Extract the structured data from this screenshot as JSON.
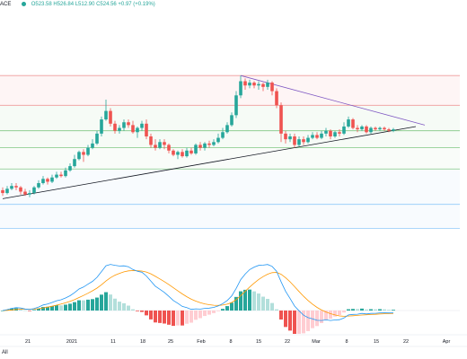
{
  "header": {
    "symbol_fragment": "ACE",
    "ohlc": "O523.58 H526.84 L512.90 C524.56 +0.97 (+0.19%)"
  },
  "range_label": "All",
  "chart_data": {
    "type": "candlestick",
    "x_ticks": [
      "21",
      "2021",
      "11",
      "18",
      "25",
      "Feb",
      "8",
      "15",
      "22",
      "Mar",
      "8",
      "15",
      "22",
      "Apr"
    ],
    "price_range": [
      0,
      100
    ],
    "candles": [
      [
        30,
        28,
        32,
        26
      ],
      [
        28,
        31,
        33,
        27
      ],
      [
        31,
        33,
        35,
        30
      ],
      [
        33,
        32,
        35,
        30
      ],
      [
        32,
        29,
        33,
        27
      ],
      [
        29,
        27,
        31,
        26
      ],
      [
        27,
        28,
        30,
        25
      ],
      [
        28,
        32,
        33,
        27
      ],
      [
        32,
        35,
        37,
        31
      ],
      [
        35,
        38,
        40,
        34
      ],
      [
        38,
        36,
        39,
        34
      ],
      [
        36,
        39,
        41,
        35
      ],
      [
        39,
        41,
        43,
        38
      ],
      [
        41,
        40,
        43,
        39
      ],
      [
        40,
        44,
        46,
        39
      ],
      [
        44,
        47,
        49,
        43
      ],
      [
        47,
        52,
        55,
        46
      ],
      [
        52,
        57,
        58,
        51
      ],
      [
        57,
        55,
        59,
        50
      ],
      [
        55,
        60,
        62,
        54
      ],
      [
        60,
        63,
        66,
        59
      ],
      [
        63,
        70,
        72,
        62
      ],
      [
        70,
        80,
        82,
        68
      ],
      [
        80,
        86,
        94,
        79
      ],
      [
        86,
        77,
        88,
        75
      ],
      [
        77,
        72,
        79,
        70
      ],
      [
        72,
        74,
        76,
        70
      ],
      [
        74,
        78,
        80,
        72
      ],
      [
        78,
        76,
        80,
        74
      ],
      [
        76,
        71,
        79,
        70
      ],
      [
        71,
        74,
        75,
        67
      ],
      [
        74,
        77,
        79,
        72
      ],
      [
        77,
        68,
        80,
        66
      ],
      [
        68,
        62,
        70,
        60
      ],
      [
        62,
        60,
        66,
        58
      ],
      [
        60,
        64,
        66,
        59
      ],
      [
        64,
        62,
        66,
        59
      ],
      [
        62,
        58,
        63,
        56
      ],
      [
        58,
        55,
        59,
        54
      ],
      [
        55,
        57,
        58,
        52
      ],
      [
        57,
        54,
        59,
        53
      ],
      [
        54,
        58,
        60,
        53
      ],
      [
        58,
        56,
        60,
        55
      ],
      [
        56,
        62,
        63,
        55
      ],
      [
        62,
        60,
        64,
        58
      ],
      [
        60,
        63,
        64,
        58
      ],
      [
        63,
        62,
        65,
        60
      ],
      [
        62,
        64,
        66,
        61
      ],
      [
        64,
        67,
        70,
        63
      ],
      [
        67,
        71,
        74,
        66
      ],
      [
        71,
        76,
        78,
        70
      ],
      [
        76,
        83,
        85,
        75
      ],
      [
        83,
        97,
        100,
        81
      ],
      [
        97,
        107,
        111,
        95
      ],
      [
        107,
        104,
        109,
        101
      ],
      [
        104,
        106,
        108,
        102
      ],
      [
        106,
        104,
        107,
        102
      ],
      [
        104,
        105,
        107,
        101
      ],
      [
        105,
        103,
        106,
        100
      ],
      [
        103,
        106,
        108,
        101
      ],
      [
        106,
        100,
        107,
        97
      ],
      [
        100,
        90,
        102,
        88
      ],
      [
        90,
        70,
        92,
        64
      ],
      [
        70,
        66,
        72,
        63
      ],
      [
        66,
        68,
        70,
        64
      ],
      [
        68,
        62,
        70,
        60
      ],
      [
        62,
        66,
        68,
        61
      ],
      [
        66,
        64,
        68,
        62
      ],
      [
        64,
        67,
        69,
        63
      ],
      [
        67,
        69,
        71,
        66
      ],
      [
        69,
        67,
        71,
        66
      ],
      [
        67,
        70,
        72,
        66
      ],
      [
        70,
        72,
        74,
        68
      ],
      [
        72,
        68,
        73,
        66
      ],
      [
        68,
        71,
        72,
        67
      ],
      [
        71,
        70,
        73,
        68
      ],
      [
        70,
        75,
        78,
        69
      ],
      [
        75,
        80,
        82,
        74
      ],
      [
        80,
        74,
        81,
        73
      ],
      [
        74,
        73,
        76,
        71
      ],
      [
        73,
        75,
        76,
        72
      ],
      [
        75,
        71,
        76,
        70
      ],
      [
        71,
        74,
        75,
        70
      ],
      [
        74,
        73,
        75,
        72
      ],
      [
        73,
        74,
        75,
        72
      ],
      [
        74,
        73,
        75,
        72
      ],
      [
        73,
        72,
        74,
        71
      ],
      [
        72,
        73,
        74,
        71
      ]
    ],
    "horizontal_levels": [
      {
        "price": 111,
        "color": "#ef9a9a"
      },
      {
        "price": 90,
        "color": "#ef9a9a"
      },
      {
        "price": 72,
        "color": "#81c784"
      },
      {
        "price": 60,
        "color": "#81c784"
      },
      {
        "price": 45,
        "color": "#81c784"
      },
      {
        "price": 20,
        "color": "#90caf9"
      },
      {
        "price": 3,
        "color": "#90caf9"
      }
    ],
    "trendlines": [
      {
        "from": [
          0,
          24
        ],
        "to": [
          92,
          75
        ],
        "color": "#131722"
      },
      {
        "from": [
          53,
          111
        ],
        "to": [
          94,
          76
        ],
        "color": "#7e57c2"
      }
    ],
    "macd_signal_line_colors": {
      "macd": "#2196f3",
      "signal": "#ff9800"
    },
    "colors": {
      "up": "#26a69a",
      "down": "#ef5350",
      "hist_up_strong": "#26a69a",
      "hist_up_weak": "#b2dfdb",
      "hist_down_strong": "#ef5350",
      "hist_down_weak": "#ffcdd2"
    }
  }
}
